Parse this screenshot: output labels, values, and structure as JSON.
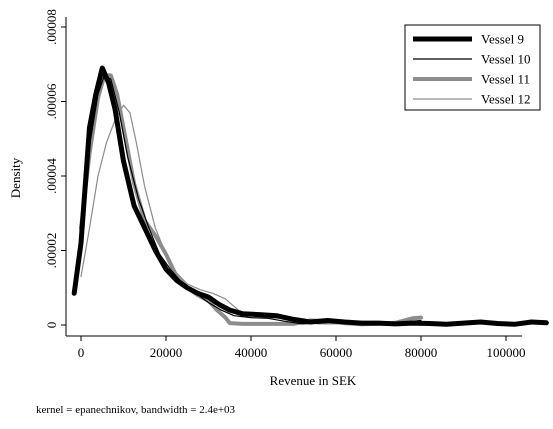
{
  "chart_data": {
    "type": "line",
    "xlabel": "Revenue in SEK",
    "ylabel": "Density",
    "xlim": [
      -3500,
      110000
    ],
    "ylim": [
      0,
      8.2e-05
    ],
    "x_ticks": [
      {
        "value": 0,
        "label": "0"
      },
      {
        "value": 20000,
        "label": "20000"
      },
      {
        "value": 40000,
        "label": "40000"
      },
      {
        "value": 60000,
        "label": "60000"
      },
      {
        "value": 80000,
        "label": "80000"
      },
      {
        "value": 100000,
        "label": "100000"
      }
    ],
    "y_ticks": [
      {
        "value": 0,
        "label": "0"
      },
      {
        "value": 2e-05,
        "label": ".00002"
      },
      {
        "value": 4e-05,
        "label": ".00004"
      },
      {
        "value": 6e-05,
        "label": ".00006"
      },
      {
        "value": 8e-05,
        "label": ".00008"
      }
    ],
    "legend_position": "top-right",
    "grid": false,
    "note": "kernel = epanechnikov, bandwidth =  2.4e+03",
    "series": [
      {
        "name": "Vessel 9",
        "color": "#000000",
        "style": "thick",
        "points": [
          [
            -1600,
            8.5e-06
          ],
          [
            0,
            2.2e-05
          ],
          [
            2000,
            5.3e-05
          ],
          [
            3500,
            6.2e-05
          ],
          [
            5000,
            6.9e-05
          ],
          [
            6500,
            6.5e-05
          ],
          [
            8000,
            5.8e-05
          ],
          [
            10000,
            4.4e-05
          ],
          [
            12500,
            3.2e-05
          ],
          [
            15000,
            2.6e-05
          ],
          [
            17500,
            2e-05
          ],
          [
            20000,
            1.5e-05
          ],
          [
            22500,
            1.2e-05
          ],
          [
            25000,
            1e-05
          ],
          [
            27500,
            8.5e-06
          ],
          [
            30000,
            7.5e-06
          ],
          [
            32500,
            5.5e-06
          ],
          [
            35000,
            4e-06
          ],
          [
            38000,
            3e-06
          ],
          [
            42000,
            2.8e-06
          ],
          [
            46000,
            2.5e-06
          ],
          [
            50000,
            1.5e-06
          ],
          [
            54000,
            8e-07
          ],
          [
            58000,
            1.2e-06
          ],
          [
            62000,
            8e-07
          ],
          [
            66000,
            5e-07
          ],
          [
            70000,
            5e-07
          ],
          [
            74000,
            3e-07
          ],
          [
            78000,
            5e-07
          ],
          [
            82000,
            4e-07
          ],
          [
            86000,
            2e-07
          ],
          [
            90000,
            5e-07
          ],
          [
            94000,
            8e-07
          ],
          [
            98000,
            4e-07
          ],
          [
            102000,
            2e-07
          ],
          [
            106000,
            8e-07
          ],
          [
            109500,
            6e-07
          ]
        ]
      },
      {
        "name": "Vessel 10",
        "color": "#000000",
        "style": "thin",
        "points": [
          [
            0,
            2.8e-05
          ],
          [
            2000,
            4.8e-05
          ],
          [
            4000,
            6.2e-05
          ],
          [
            5500,
            6.7e-05
          ],
          [
            7000,
            6.6e-05
          ],
          [
            9000,
            5.7e-05
          ],
          [
            11000,
            4.5e-05
          ],
          [
            13500,
            3.4e-05
          ],
          [
            16000,
            2.6e-05
          ],
          [
            18500,
            1.9e-05
          ],
          [
            21000,
            1.5e-05
          ],
          [
            24000,
            1.1e-05
          ],
          [
            27000,
            8.5e-06
          ],
          [
            30000,
            6e-06
          ],
          [
            33000,
            4e-06
          ],
          [
            36000,
            2.5e-06
          ],
          [
            40000,
            2e-06
          ],
          [
            44000,
            1.8e-06
          ],
          [
            48000,
            1e-06
          ],
          [
            52000,
            3e-07
          ],
          [
            56000,
            5e-07
          ],
          [
            60000,
            8e-07
          ],
          [
            64000,
            4e-07
          ],
          [
            68000,
            2e-07
          ],
          [
            72000,
            3e-07
          ],
          [
            76000,
            8e-07
          ],
          [
            80000,
            1.2e-06
          ]
        ]
      },
      {
        "name": "Vessel 11",
        "color": "#8c8c8c",
        "style": "thick",
        "points": [
          [
            0,
            2.6e-05
          ],
          [
            2000,
            4.6e-05
          ],
          [
            4000,
            6.1e-05
          ],
          [
            5500,
            6.7e-05
          ],
          [
            7000,
            6.7e-05
          ],
          [
            8500,
            6.2e-05
          ],
          [
            10500,
            5e-05
          ],
          [
            12500,
            3.8e-05
          ],
          [
            15000,
            2.8e-05
          ],
          [
            17500,
            2.4e-05
          ],
          [
            20000,
            1.9e-05
          ],
          [
            22500,
            1.3e-05
          ],
          [
            25000,
            1e-05
          ],
          [
            27500,
            8e-06
          ],
          [
            30000,
            6.5e-06
          ],
          [
            32000,
            4e-06
          ],
          [
            34000,
            2e-06
          ],
          [
            35000,
            5e-07
          ],
          [
            38000,
            3e-07
          ],
          [
            42000,
            3e-07
          ],
          [
            46000,
            3e-07
          ],
          [
            50000,
            3e-07
          ],
          [
            54000,
            1.2e-06
          ],
          [
            58000,
            1e-06
          ],
          [
            62000,
            5e-07
          ],
          [
            66000,
            2e-07
          ],
          [
            70000,
            3e-07
          ],
          [
            74000,
            6e-07
          ],
          [
            78000,
            1.8e-06
          ],
          [
            80000,
            2e-06
          ]
        ]
      },
      {
        "name": "Vessel 12",
        "color": "#8c8c8c",
        "style": "thin",
        "points": [
          [
            0,
            1.3e-05
          ],
          [
            2000,
            2.6e-05
          ],
          [
            4000,
            4e-05
          ],
          [
            6000,
            4.9e-05
          ],
          [
            8000,
            5.5e-05
          ],
          [
            10000,
            5.9e-05
          ],
          [
            11500,
            5.7e-05
          ],
          [
            13000,
            4.9e-05
          ],
          [
            15000,
            3.7e-05
          ],
          [
            17500,
            2.6e-05
          ],
          [
            20000,
            1.9e-05
          ],
          [
            22500,
            1.4e-05
          ],
          [
            25000,
            1.1e-05
          ],
          [
            28000,
            9.5e-06
          ],
          [
            31000,
            8.5e-06
          ],
          [
            34000,
            7e-06
          ],
          [
            37000,
            4e-06
          ],
          [
            40000,
            2.5e-06
          ],
          [
            44000,
            2e-06
          ],
          [
            48000,
            1.8e-06
          ],
          [
            52000,
            8e-07
          ],
          [
            56000,
            3e-07
          ],
          [
            60000,
            3e-07
          ],
          [
            64000,
            5e-07
          ],
          [
            68000,
            3e-07
          ],
          [
            72000,
            2e-07
          ],
          [
            76000,
            5e-07
          ],
          [
            80000,
            8e-07
          ]
        ]
      }
    ]
  }
}
